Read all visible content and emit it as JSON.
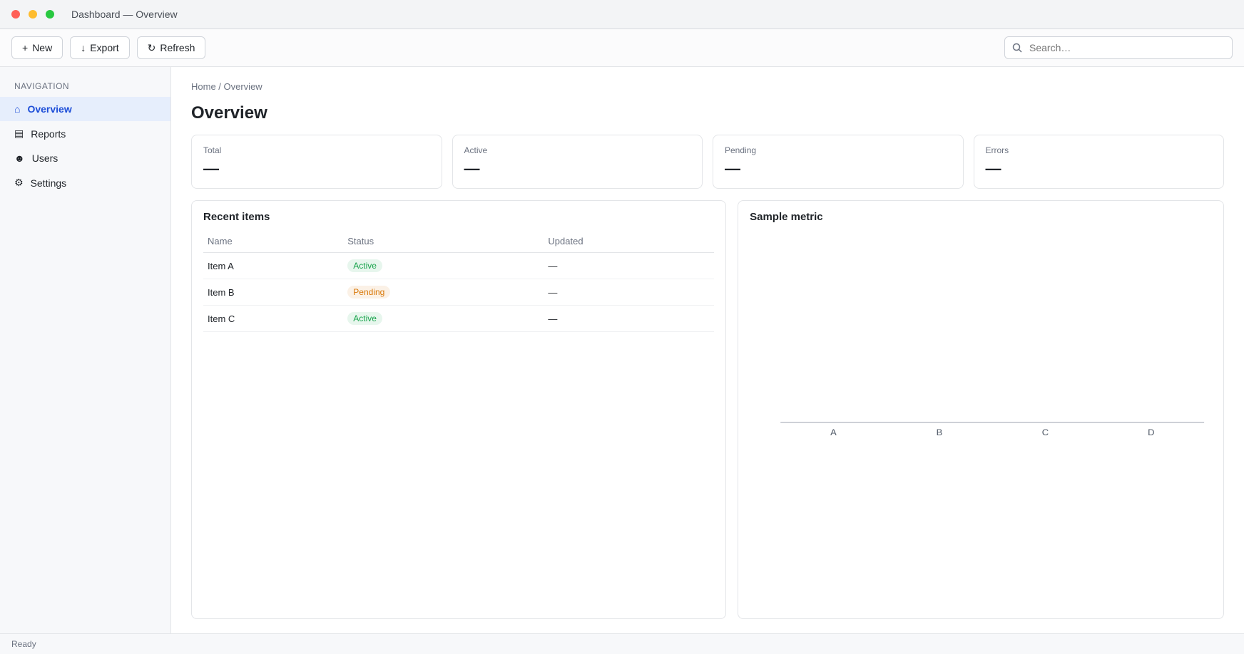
{
  "window": {
    "title": "Dashboard — Overview"
  },
  "toolbar": {
    "new_label": "New",
    "export_label": "Export",
    "refresh_label": "Refresh",
    "search_placeholder": "Search…"
  },
  "sidebar": {
    "section_label": "Navigation",
    "items": [
      {
        "label": "Overview"
      },
      {
        "label": "Reports"
      },
      {
        "label": "Users"
      },
      {
        "label": "Settings"
      }
    ]
  },
  "main": {
    "breadcrumb": "Home / Overview",
    "title": "Overview",
    "cards": [
      {
        "label": "Total",
        "value": "—"
      },
      {
        "label": "Active",
        "value": "—"
      },
      {
        "label": "Pending",
        "value": "—"
      },
      {
        "label": "Errors",
        "value": "—"
      }
    ]
  },
  "table": {
    "title": "Recent items",
    "columns": [
      "Name",
      "Status",
      "Updated"
    ],
    "rows": [
      [
        "Item A",
        "Active",
        "—"
      ],
      [
        "Item B",
        "Pending",
        "—"
      ],
      [
        "Item C",
        "Active",
        "—"
      ]
    ]
  },
  "status_colors": {
    "Active": "#16a34a",
    "Pending": "#d97706"
  },
  "chart_data": {
    "type": "bar",
    "title": "Sample metric",
    "categories": [
      "A",
      "B",
      "C",
      "D"
    ],
    "values": [
      0,
      0,
      0,
      0
    ],
    "xlabel": "",
    "ylabel": "",
    "ylim": [
      0,
      1
    ]
  },
  "statusbar": {
    "left": "Ready",
    "right": ""
  },
  "colors": {
    "accent": "#1d4ed8"
  }
}
